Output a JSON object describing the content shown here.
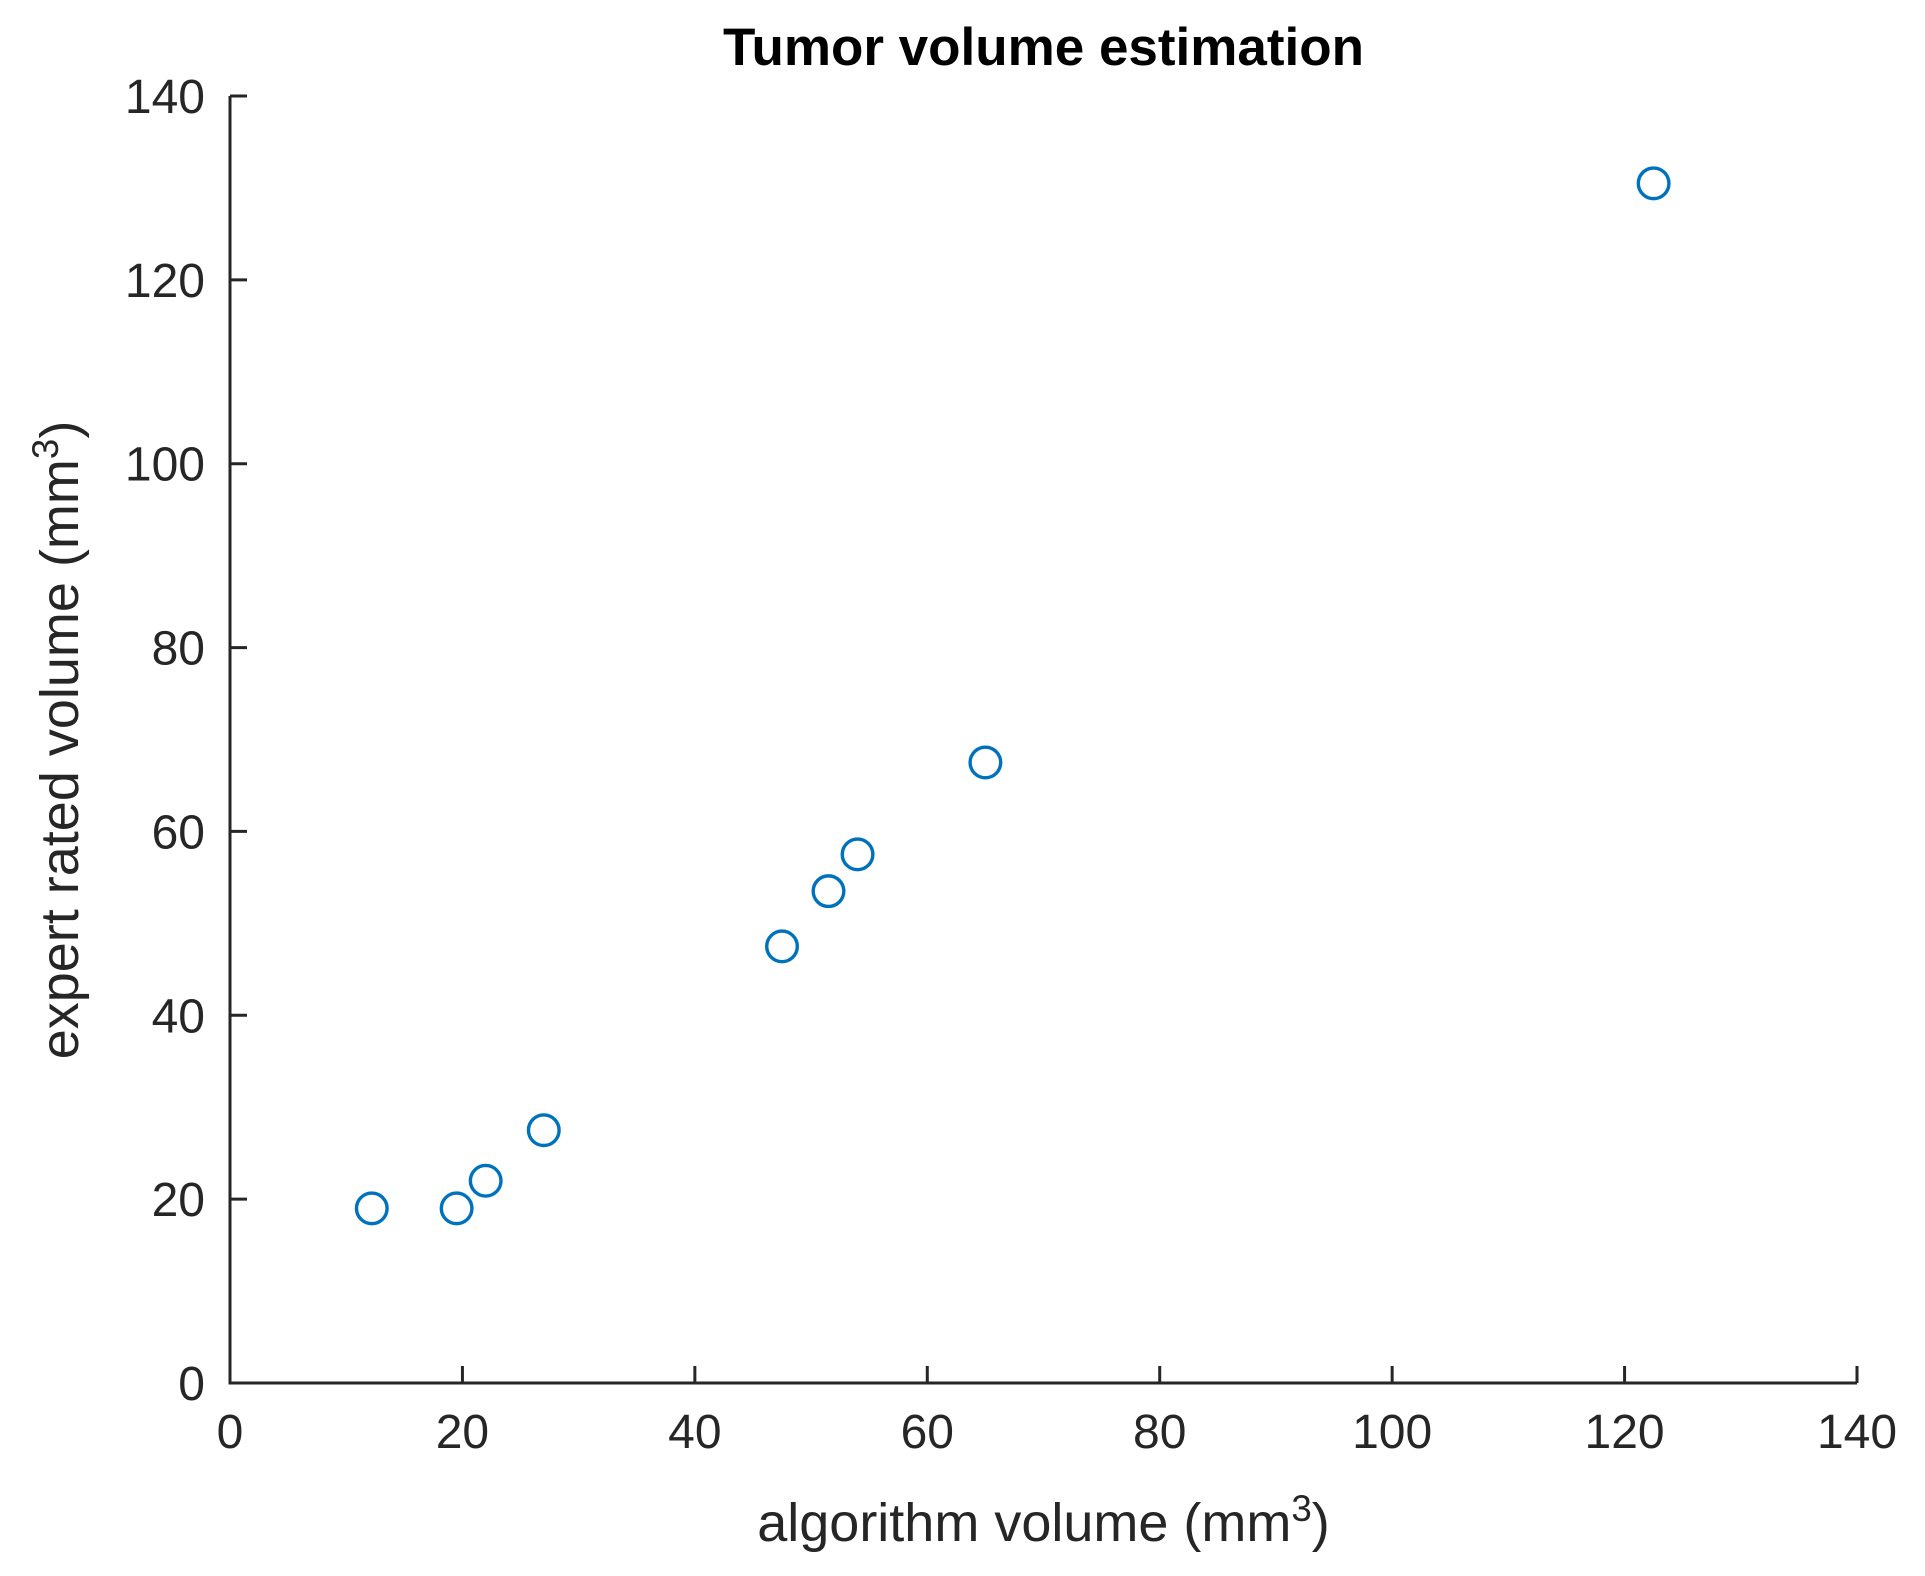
{
  "chart_data": {
    "type": "scatter",
    "title": "Tumor volume estimation",
    "xlabel_prefix": "algorithm volume (mm",
    "xlabel_superscript": "3",
    "xlabel_suffix": ")",
    "ylabel_prefix": "expert rated volume (mm",
    "ylabel_superscript": "3",
    "ylabel_suffix": ")",
    "xlim": [
      0,
      140
    ],
    "ylim": [
      0,
      140
    ],
    "xticks": [
      0,
      20,
      40,
      60,
      80,
      100,
      120,
      140
    ],
    "yticks": [
      0,
      20,
      40,
      60,
      80,
      100,
      120,
      140
    ],
    "grid": false,
    "legend_position": "none",
    "marker_shape": "open-circle",
    "marker_color": "#0072BD",
    "axis_color": "#262626",
    "background_color": "#ffffff",
    "points": [
      {
        "x": 12.2,
        "y": 19
      },
      {
        "x": 19.5,
        "y": 19
      },
      {
        "x": 22,
        "y": 22
      },
      {
        "x": 27,
        "y": 27.5
      },
      {
        "x": 47.5,
        "y": 47.5
      },
      {
        "x": 51.5,
        "y": 53.5
      },
      {
        "x": 54,
        "y": 57.5
      },
      {
        "x": 65,
        "y": 67.5
      },
      {
        "x": 122.5,
        "y": 130.5
      }
    ]
  }
}
